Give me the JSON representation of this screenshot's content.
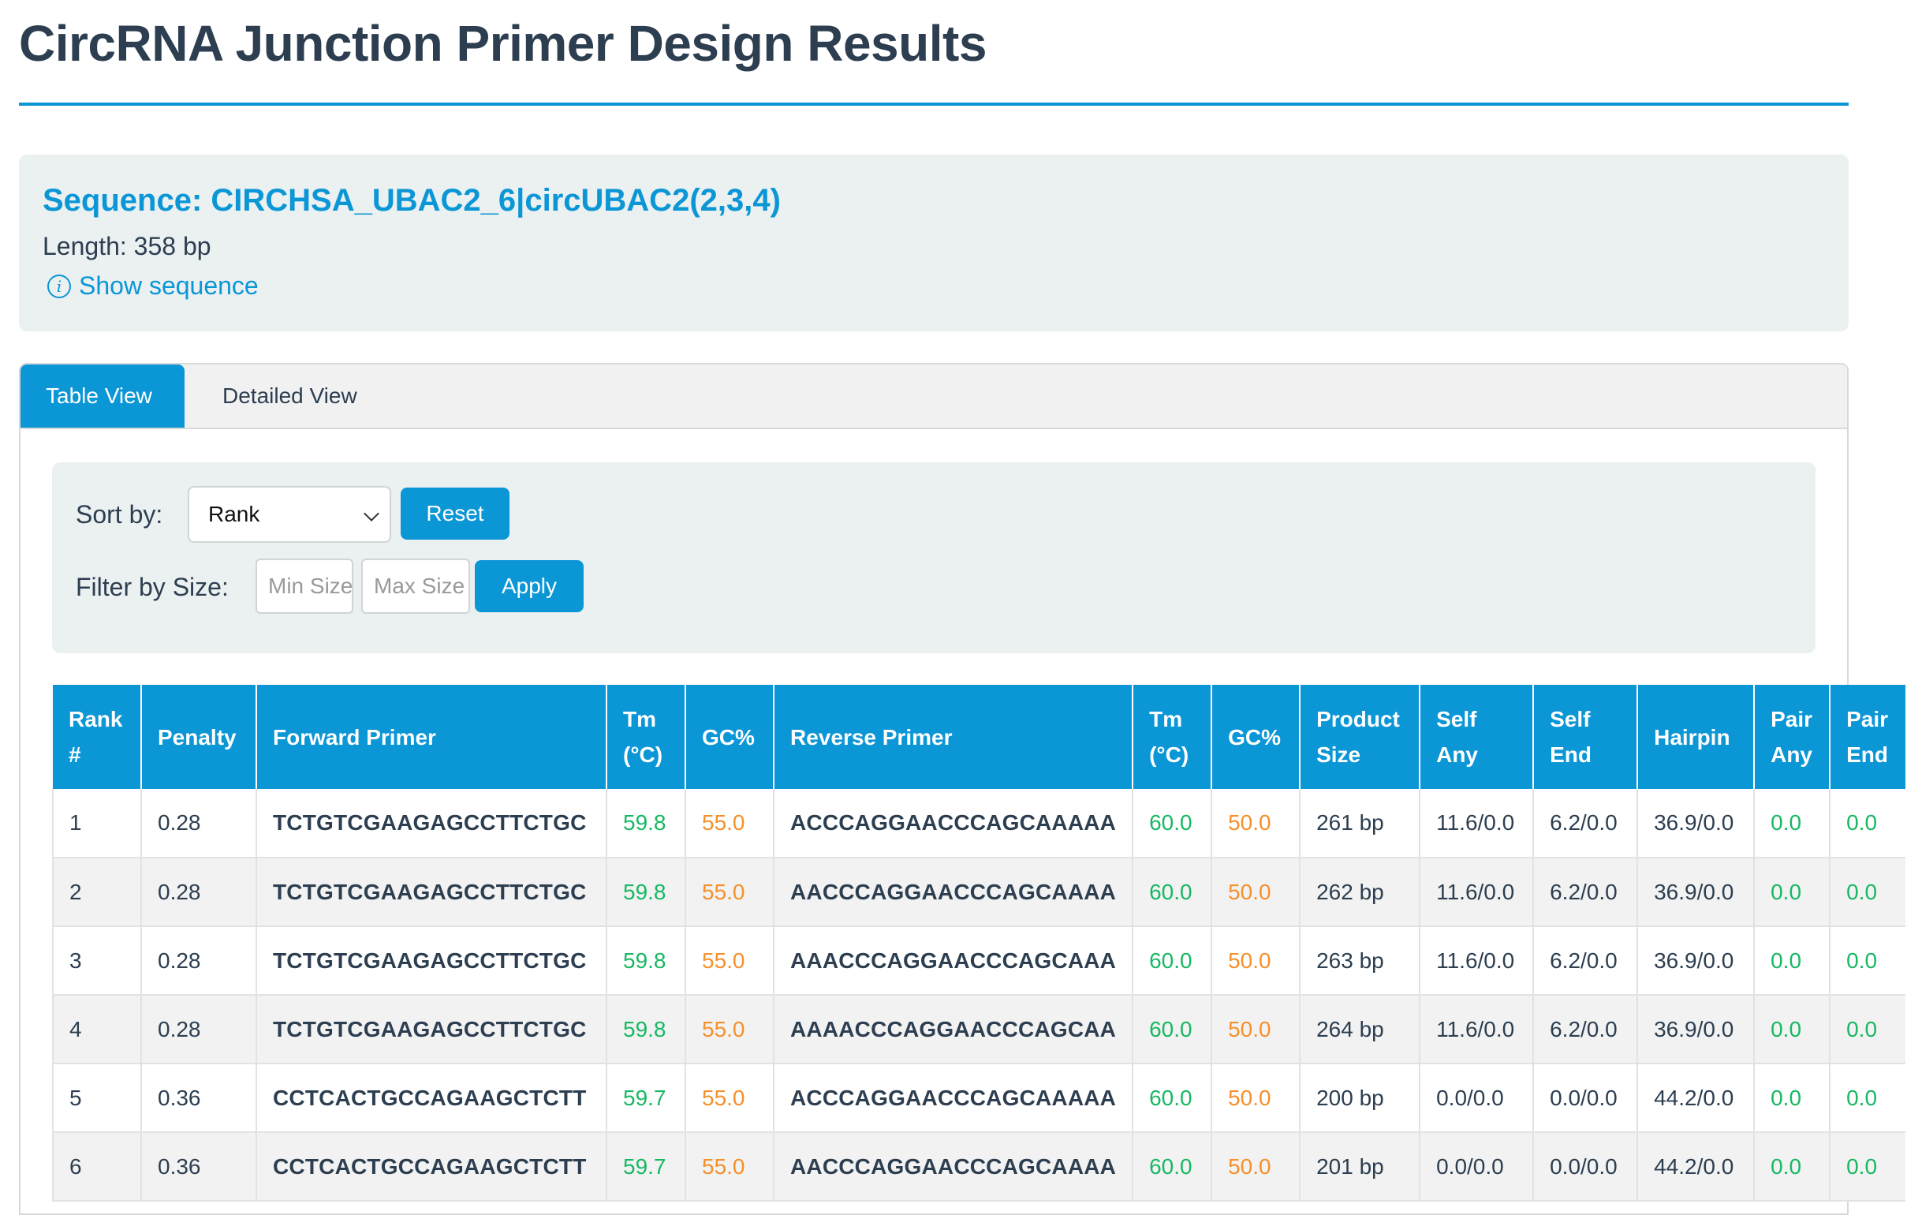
{
  "page_title": "CircRNA Junction Primer Design Results",
  "sequence": {
    "title": "Sequence: CIRCHSA_UBAC2_6|circUBAC2(2,3,4)",
    "length": "Length: 358 bp",
    "show_link": "Show sequence",
    "info_icon_glyph": "i"
  },
  "tabs": [
    {
      "label": "Table View"
    },
    {
      "label": "Detailed View"
    }
  ],
  "controls": {
    "sort_label": "Sort by:",
    "sort_value": "Rank",
    "reset_label": "Reset",
    "filter_label": "Filter by Size:",
    "min_placeholder": "Min Size",
    "max_placeholder": "Max Size",
    "apply_label": "Apply"
  },
  "table": {
    "headers": [
      [
        "Rank",
        "#"
      ],
      [
        "Penalty"
      ],
      [
        "Forward Primer"
      ],
      [
        "Tm",
        "(°C)"
      ],
      [
        "GC%"
      ],
      [
        "Reverse Primer"
      ],
      [
        "Tm",
        "(°C)"
      ],
      [
        "GC%"
      ],
      [
        "Product",
        "Size"
      ],
      [
        "Self",
        "Any"
      ],
      [
        "Self",
        "End"
      ],
      [
        "Hairpin"
      ],
      [
        "Pair",
        "Any"
      ],
      [
        "Pair",
        "End"
      ]
    ],
    "rows": [
      [
        "1",
        "0.28",
        "TCTGTCGAAGAGCCTTCTGC",
        "59.8",
        "55.0",
        "ACCCAGGAACCCAGCAAAAA",
        "60.0",
        "50.0",
        "261 bp",
        "11.6/0.0",
        "6.2/0.0",
        "36.9/0.0",
        "0.0",
        "0.0"
      ],
      [
        "2",
        "0.28",
        "TCTGTCGAAGAGCCTTCTGC",
        "59.8",
        "55.0",
        "AACCCAGGAACCCAGCAAAA",
        "60.0",
        "50.0",
        "262 bp",
        "11.6/0.0",
        "6.2/0.0",
        "36.9/0.0",
        "0.0",
        "0.0"
      ],
      [
        "3",
        "0.28",
        "TCTGTCGAAGAGCCTTCTGC",
        "59.8",
        "55.0",
        "AAACCCAGGAACCCAGCAAA",
        "60.0",
        "50.0",
        "263 bp",
        "11.6/0.0",
        "6.2/0.0",
        "36.9/0.0",
        "0.0",
        "0.0"
      ],
      [
        "4",
        "0.28",
        "TCTGTCGAAGAGCCTTCTGC",
        "59.8",
        "55.0",
        "AAAACCCAGGAACCCAGCAA",
        "60.0",
        "50.0",
        "264 bp",
        "11.6/0.0",
        "6.2/0.0",
        "36.9/0.0",
        "0.0",
        "0.0"
      ],
      [
        "5",
        "0.36",
        "CCTCACTGCCAGAAGCTCTT",
        "59.7",
        "55.0",
        "ACCCAGGAACCCAGCAAAAA",
        "60.0",
        "50.0",
        "200 bp",
        "0.0/0.0",
        "0.0/0.0",
        "44.2/0.0",
        "0.0",
        "0.0"
      ],
      [
        "6",
        "0.36",
        "CCTCACTGCCAGAAGCTCTT",
        "59.7",
        "55.0",
        "AACCCAGGAACCCAGCAAAA",
        "60.0",
        "50.0",
        "201 bp",
        "0.0/0.0",
        "0.0/0.0",
        "44.2/0.0",
        "0.0",
        "0.0"
      ]
    ]
  },
  "colors": {
    "accent": "#0b96d6",
    "tm_green": "#17b862",
    "gc_orange": "#f5902b",
    "heading": "#2c3e50"
  }
}
